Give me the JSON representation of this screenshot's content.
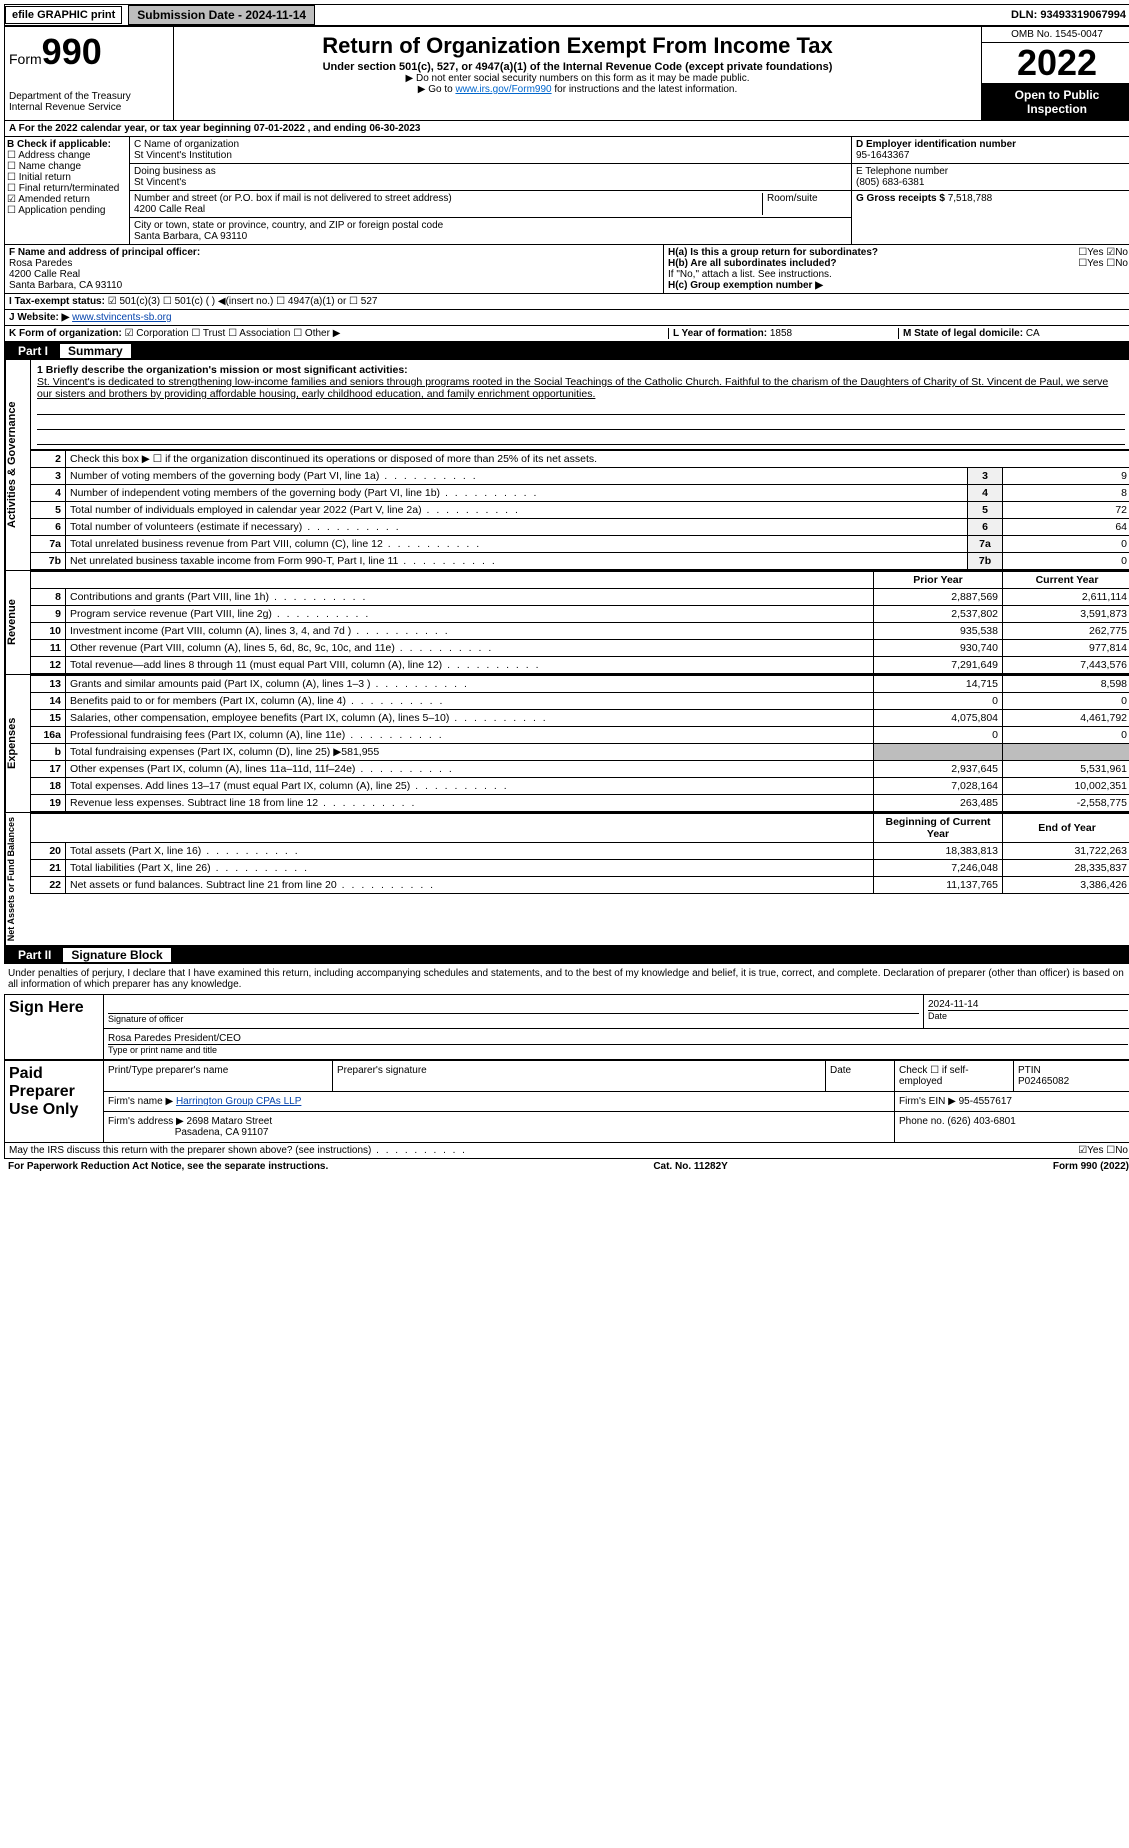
{
  "topbar": {
    "efile": "efile GRAPHIC print",
    "subm_lbl": "Submission Date - 2024-11-14",
    "dln": "DLN: 93493319067994"
  },
  "header": {
    "form_prefix": "Form",
    "form_no": "990",
    "dept": "Department of the Treasury",
    "irs": "Internal Revenue Service",
    "title": "Return of Organization Exempt From Income Tax",
    "sub": "Under section 501(c), 527, or 4947(a)(1) of the Internal Revenue Code (except private foundations)",
    "warn": "▶ Do not enter social security numbers on this form as it may be made public.",
    "goto_pre": "▶ Go to ",
    "goto_link": "www.irs.gov/Form990",
    "goto_post": " for instructions and the latest information.",
    "omb": "OMB No. 1545-0047",
    "year": "2022",
    "open": "Open to Public Inspection"
  },
  "rowA": "A For the 2022 calendar year, or tax year beginning 07-01-2022    , and ending 06-30-2023",
  "colB": {
    "title": "B Check if applicable:",
    "items": [
      "☐ Address change",
      "☐ Name change",
      "☐ Initial return",
      "☐ Final return/terminated",
      "☑ Amended return",
      "☐ Application pending"
    ]
  },
  "colC": {
    "name_lbl": "C Name of organization",
    "name": "St Vincent's Institution",
    "dba_lbl": "Doing business as",
    "dba": "St Vincent's",
    "addr_lbl": "Number and street (or P.O. box if mail is not delivered to street address)",
    "room_lbl": "Room/suite",
    "addr": "4200 Calle Real",
    "city_lbl": "City or town, state or province, country, and ZIP or foreign postal code",
    "city": "Santa Barbara, CA  93110"
  },
  "colD": {
    "d_lbl": "D Employer identification number",
    "d_val": "95-1643367",
    "e_lbl": "E Telephone number",
    "e_val": "(805) 683-6381",
    "g_lbl": "G Gross receipts $",
    "g_val": "7,518,788"
  },
  "rowF": {
    "f_lbl": "F  Name and address of principal officer:",
    "f_name": "Rosa Paredes",
    "f_addr1": "4200 Calle Real",
    "f_addr2": "Santa Barbara, CA  93110",
    "ha_lbl": "H(a)  Is this a group return for subordinates?",
    "ha_val": "☐Yes ☑No",
    "hb_lbl": "H(b)  Are all subordinates included?",
    "hb_val": "☐Yes ☐No",
    "hb_note": "If \"No,\" attach a list. See instructions.",
    "hc_lbl": "H(c)  Group exemption number ▶"
  },
  "rowI": {
    "i_lbl": "I  Tax-exempt status:",
    "i_opts": "☑ 501(c)(3)   ☐ 501(c) (  ) ◀(insert no.)   ☐ 4947(a)(1) or   ☐ 527"
  },
  "rowJ": {
    "j_lbl": "J  Website: ▶",
    "j_val": "www.stvincents-sb.org"
  },
  "rowK": {
    "k_lbl": "K Form of organization:",
    "k_opts": "☑ Corporation  ☐ Trust  ☐ Association  ☐ Other ▶",
    "l_lbl": "L Year of formation: ",
    "l_val": "1858",
    "m_lbl": "M State of legal domicile: ",
    "m_val": "CA"
  },
  "part1": {
    "num": "Part I",
    "title": "Summary"
  },
  "mission": {
    "q": "1  Briefly describe the organization's mission or most significant activities:",
    "text": "St. Vincent's is dedicated to strengthening low-income families and seniors through programs rooted in the Social Teachings of the Catholic Church. Faithful to the charism of the Daughters of Charity of St. Vincent de Paul, we serve our sisters and brothers by providing affordable housing, early childhood education, and family enrichment opportunities."
  },
  "governance": {
    "vtab": "Activities & Governance",
    "l2": "Check this box ▶ ☐  if the organization discontinued its operations or disposed of more than 25% of its net assets.",
    "rows": [
      {
        "n": "3",
        "d": "Number of voting members of the governing body (Part VI, line 1a)",
        "v": "9"
      },
      {
        "n": "4",
        "d": "Number of independent voting members of the governing body (Part VI, line 1b)",
        "v": "8"
      },
      {
        "n": "5",
        "d": "Total number of individuals employed in calendar year 2022 (Part V, line 2a)",
        "v": "72"
      },
      {
        "n": "6",
        "d": "Total number of volunteers (estimate if necessary)",
        "v": "64"
      },
      {
        "n": "7a",
        "d": "Total unrelated business revenue from Part VIII, column (C), line 12",
        "v": "0"
      },
      {
        "n": "7b",
        "d": "Net unrelated business taxable income from Form 990-T, Part I, line 11",
        "v": "0"
      }
    ]
  },
  "revenue": {
    "vtab": "Revenue",
    "hdr_prior": "Prior Year",
    "hdr_curr": "Current Year",
    "rows": [
      {
        "n": "8",
        "d": "Contributions and grants (Part VIII, line 1h)",
        "p": "2,887,569",
        "c": "2,611,114"
      },
      {
        "n": "9",
        "d": "Program service revenue (Part VIII, line 2g)",
        "p": "2,537,802",
        "c": "3,591,873"
      },
      {
        "n": "10",
        "d": "Investment income (Part VIII, column (A), lines 3, 4, and 7d )",
        "p": "935,538",
        "c": "262,775"
      },
      {
        "n": "11",
        "d": "Other revenue (Part VIII, column (A), lines 5, 6d, 8c, 9c, 10c, and 11e)",
        "p": "930,740",
        "c": "977,814"
      },
      {
        "n": "12",
        "d": "Total revenue—add lines 8 through 11 (must equal Part VIII, column (A), line 12)",
        "p": "7,291,649",
        "c": "7,443,576"
      }
    ]
  },
  "expenses": {
    "vtab": "Expenses",
    "rows": [
      {
        "n": "13",
        "d": "Grants and similar amounts paid (Part IX, column (A), lines 1–3 )",
        "p": "14,715",
        "c": "8,598"
      },
      {
        "n": "14",
        "d": "Benefits paid to or for members (Part IX, column (A), line 4)",
        "p": "0",
        "c": "0"
      },
      {
        "n": "15",
        "d": "Salaries, other compensation, employee benefits (Part IX, column (A), lines 5–10)",
        "p": "4,075,804",
        "c": "4,461,792"
      },
      {
        "n": "16a",
        "d": "Professional fundraising fees (Part IX, column (A), line 11e)",
        "p": "0",
        "c": "0"
      },
      {
        "n": "b",
        "d": "Total fundraising expenses (Part IX, column (D), line 25) ▶581,955",
        "p": "",
        "c": "",
        "shade": true
      },
      {
        "n": "17",
        "d": "Other expenses (Part IX, column (A), lines 11a–11d, 11f–24e)",
        "p": "2,937,645",
        "c": "5,531,961"
      },
      {
        "n": "18",
        "d": "Total expenses. Add lines 13–17 (must equal Part IX, column (A), line 25)",
        "p": "7,028,164",
        "c": "10,002,351"
      },
      {
        "n": "19",
        "d": "Revenue less expenses. Subtract line 18 from line 12",
        "p": "263,485",
        "c": "-2,558,775"
      }
    ]
  },
  "netassets": {
    "vtab": "Net Assets or Fund Balances",
    "hdr_beg": "Beginning of Current Year",
    "hdr_end": "End of Year",
    "rows": [
      {
        "n": "20",
        "d": "Total assets (Part X, line 16)",
        "p": "18,383,813",
        "c": "31,722,263"
      },
      {
        "n": "21",
        "d": "Total liabilities (Part X, line 26)",
        "p": "7,246,048",
        "c": "28,335,837"
      },
      {
        "n": "22",
        "d": "Net assets or fund balances. Subtract line 21 from line 20",
        "p": "11,137,765",
        "c": "3,386,426"
      }
    ]
  },
  "part2": {
    "num": "Part II",
    "title": "Signature Block"
  },
  "sig_note": "Under penalties of perjury, I declare that I have examined this return, including accompanying schedules and statements, and to the best of my knowledge and belief, it is true, correct, and complete. Declaration of preparer (other than officer) is based on all information of which preparer has any knowledge.",
  "sign": {
    "here": "Sign Here",
    "sig_lbl": "Signature of officer",
    "date_lbl": "Date",
    "date_val": "2024-11-14",
    "name": "Rosa Paredes  President/CEO",
    "name_lbl": "Type or print name and title"
  },
  "preparer": {
    "title": "Paid Preparer Use Only",
    "pname_lbl": "Print/Type preparer's name",
    "psig_lbl": "Preparer's signature",
    "pdate_lbl": "Date",
    "pcheck_lbl": "Check ☐ if self-employed",
    "ptin_lbl": "PTIN",
    "ptin_val": "P02465082",
    "firm_lbl": "Firm's name    ▶",
    "firm_val": "Harrington Group CPAs LLP",
    "ein_lbl": "Firm's EIN ▶",
    "ein_val": "95-4557617",
    "addr_lbl": "Firm's address ▶",
    "addr_val1": "2698 Mataro Street",
    "addr_val2": "Pasadena, CA  91107",
    "phone_lbl": "Phone no.",
    "phone_val": "(626) 403-6801"
  },
  "discuss": {
    "q": "May the IRS discuss this return with the preparer shown above? (see instructions)",
    "a": "☑Yes  ☐No"
  },
  "footer": {
    "left": "For Paperwork Reduction Act Notice, see the separate instructions.",
    "mid": "Cat. No. 11282Y",
    "right": "Form 990 (2022)"
  }
}
